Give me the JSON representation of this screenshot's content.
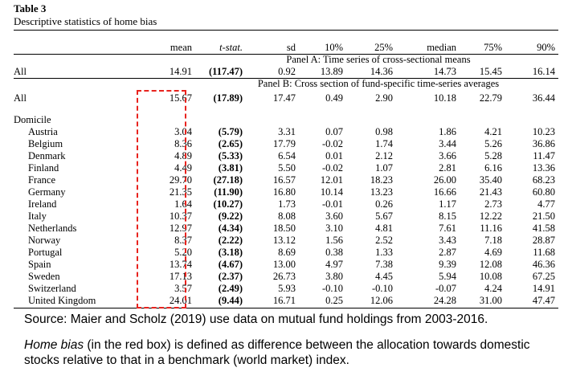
{
  "table": {
    "title": "Table 3",
    "subtitle": "Descriptive statistics of home bias",
    "columns": [
      "mean",
      "t-stat.",
      "sd",
      "10%",
      "25%",
      "median",
      "75%",
      "90%"
    ],
    "panel_a_title": "Panel A: Time series of cross-sectional means",
    "panel_a_row": {
      "label": "All",
      "values": [
        "14.91",
        "(117.47)",
        "0.92",
        "13.89",
        "14.36",
        "14.73",
        "15.45",
        "16.14"
      ]
    },
    "panel_b_title": "Panel B: Cross section of fund-specific time-series averages",
    "panel_b_all": {
      "label": "All",
      "values": [
        "15.67",
        "(17.89)",
        "17.47",
        "0.49",
        "2.90",
        "10.18",
        "22.79",
        "36.44"
      ]
    },
    "domicile_label": "Domicile",
    "domicile_rows": [
      {
        "label": "Austria",
        "values": [
          "3.04",
          "(5.79)",
          "3.31",
          "0.07",
          "0.98",
          "1.86",
          "4.21",
          "10.23"
        ]
      },
      {
        "label": "Belgium",
        "values": [
          "8.36",
          "(2.65)",
          "17.79",
          "-0.02",
          "1.74",
          "3.44",
          "5.26",
          "36.86"
        ]
      },
      {
        "label": "Denmark",
        "values": [
          "4.89",
          "(5.33)",
          "6.54",
          "0.01",
          "2.12",
          "3.66",
          "5.28",
          "11.47"
        ]
      },
      {
        "label": "Finland",
        "values": [
          "4.49",
          "(3.81)",
          "5.50",
          "-0.02",
          "1.07",
          "2.81",
          "6.16",
          "13.36"
        ]
      },
      {
        "label": "France",
        "values": [
          "29.70",
          "(27.18)",
          "16.57",
          "12.01",
          "18.23",
          "26.00",
          "35.40",
          "68.23"
        ]
      },
      {
        "label": "Germany",
        "values": [
          "21.35",
          "(11.90)",
          "16.80",
          "10.14",
          "13.23",
          "16.66",
          "21.43",
          "60.80"
        ]
      },
      {
        "label": "Ireland",
        "values": [
          "1.64",
          "(10.27)",
          "1.73",
          "-0.01",
          "0.26",
          "1.17",
          "2.73",
          "4.77"
        ]
      },
      {
        "label": "Italy",
        "values": [
          "10.37",
          "(9.22)",
          "8.08",
          "3.60",
          "5.67",
          "8.15",
          "12.22",
          "21.50"
        ]
      },
      {
        "label": "Netherlands",
        "values": [
          "12.97",
          "(4.34)",
          "18.50",
          "3.10",
          "4.81",
          "7.61",
          "11.16",
          "41.58"
        ]
      },
      {
        "label": "Norway",
        "values": [
          "8.37",
          "(2.22)",
          "13.12",
          "1.56",
          "2.52",
          "3.43",
          "7.18",
          "28.87"
        ]
      },
      {
        "label": "Portugal",
        "values": [
          "5.20",
          "(3.18)",
          "8.69",
          "0.38",
          "1.33",
          "2.87",
          "4.69",
          "11.68"
        ]
      },
      {
        "label": "Spain",
        "values": [
          "13.74",
          "(4.67)",
          "13.00",
          "4.97",
          "7.38",
          "9.39",
          "12.08",
          "46.36"
        ]
      },
      {
        "label": "Sweden",
        "values": [
          "17.13",
          "(2.37)",
          "26.73",
          "3.80",
          "4.45",
          "5.94",
          "10.08",
          "67.25"
        ]
      },
      {
        "label": "Switzerland",
        "values": [
          "3.57",
          "(2.49)",
          "5.93",
          "-0.10",
          "-0.10",
          "-0.07",
          "4.24",
          "14.91"
        ]
      },
      {
        "label": "United Kingdom",
        "values": [
          "24.01",
          "(9.44)",
          "16.71",
          "0.25",
          "12.06",
          "24.28",
          "31.00",
          "47.47"
        ]
      }
    ]
  },
  "source_text": "Source: Maier and Scholz (2019) use data on mutual fund holdings from 2003-2016.",
  "note": {
    "term": "Home bias",
    "rest": " (in the red box) is defined as  difference between the allocation towards domestic stocks relative to that in a benchmark (world market) index."
  },
  "colors": {
    "highlight_box": "#e8231e"
  }
}
